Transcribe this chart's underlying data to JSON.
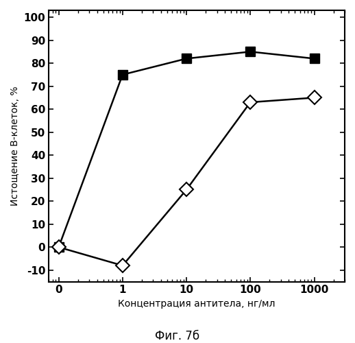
{
  "series1_x": [
    0.1,
    1,
    10,
    100,
    1000
  ],
  "series1_y": [
    0,
    75,
    82,
    85,
    82
  ],
  "series2_x": [
    0.1,
    1,
    10,
    100,
    1000
  ],
  "series2_y": [
    0,
    -8,
    25,
    63,
    65
  ],
  "xlabel": "Концентрация антитела, нг/мл",
  "ylabel": "Истощение В-клеток, %",
  "caption": "Фиг. 7б",
  "ylim": [
    -15,
    103
  ],
  "yticks": [
    -10,
    0,
    10,
    20,
    30,
    40,
    50,
    60,
    70,
    80,
    90,
    100
  ],
  "xtick_labels": [
    "0",
    "1",
    "10",
    "100",
    "1000"
  ],
  "xtick_values": [
    0.1,
    1,
    10,
    100,
    1000
  ],
  "line_color": "#000000",
  "background_color": "#ffffff",
  "label_fontsize": 10,
  "tick_fontsize": 11,
  "caption_fontsize": 12
}
